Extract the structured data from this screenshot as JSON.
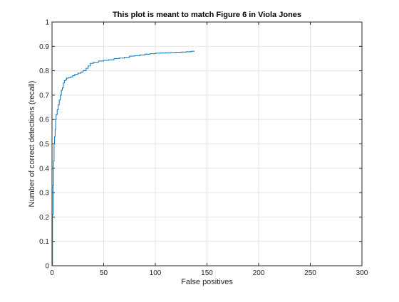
{
  "chart_data": {
    "type": "line",
    "title": "This plot is meant to match Figure 6 in Viola Jones",
    "xlabel": "False positives",
    "ylabel": "Number of correct detections (recall)",
    "xlim": [
      0,
      300
    ],
    "ylim": [
      0,
      1
    ],
    "xticks": [
      0,
      50,
      100,
      150,
      200,
      250,
      300
    ],
    "yticks": [
      0,
      0.1,
      0.2,
      0.3,
      0.4,
      0.5,
      0.6,
      0.7,
      0.8,
      0.9,
      1
    ],
    "xtick_labels": [
      "0",
      "50",
      "100",
      "150",
      "200",
      "250",
      "300"
    ],
    "ytick_labels": [
      "0",
      "0.1",
      "0.2",
      "0.3",
      "0.4",
      "0.5",
      "0.6",
      "0.7",
      "0.8",
      "0.9",
      "1"
    ],
    "grid": true,
    "legend": "none",
    "line_style": "stairs",
    "color": "#0072bd",
    "series": [
      {
        "x": [
          0,
          0.5,
          1,
          1.5,
          2,
          2.5,
          3,
          3.5,
          4,
          5,
          6,
          7,
          8,
          9,
          10,
          11,
          12,
          13,
          14,
          16,
          18,
          20,
          22,
          25,
          28,
          30,
          33,
          35,
          37,
          40,
          45,
          50,
          55,
          60,
          65,
          70,
          75,
          80,
          85,
          90,
          95,
          100,
          105,
          110,
          115,
          120,
          125,
          130,
          135,
          138
        ],
        "y": [
          0,
          0.21,
          0.33,
          0.43,
          0.5,
          0.53,
          0.56,
          0.6,
          0.62,
          0.64,
          0.66,
          0.68,
          0.7,
          0.72,
          0.73,
          0.75,
          0.76,
          0.762,
          0.77,
          0.772,
          0.775,
          0.78,
          0.785,
          0.79,
          0.795,
          0.8,
          0.81,
          0.82,
          0.83,
          0.835,
          0.84,
          0.843,
          0.845,
          0.85,
          0.852,
          0.855,
          0.86,
          0.862,
          0.865,
          0.868,
          0.87,
          0.872,
          0.873,
          0.874,
          0.875,
          0.876,
          0.877,
          0.878,
          0.88,
          0.88
        ]
      }
    ]
  }
}
